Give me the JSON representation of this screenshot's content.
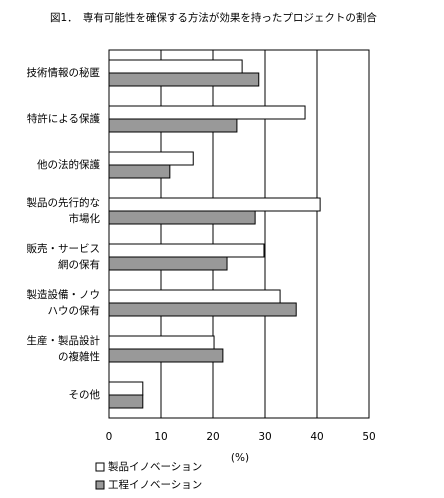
{
  "chart_data": {
    "type": "hbar",
    "title": "図1．　専有可能性を確保する方法が効果を持ったプロジェクトの割合",
    "categories": [
      [
        "技術情報の秘匿"
      ],
      [
        "特許による保護"
      ],
      [
        "他の法的保護"
      ],
      [
        "製品の先行的な",
        "市場化"
      ],
      [
        "販売・サービス",
        "網の保有"
      ],
      [
        "製造設備・ノウ",
        "ハウの保有"
      ],
      [
        "生産・製品設計",
        "の複雑性"
      ],
      [
        "その他"
      ]
    ],
    "series": [
      {
        "name": "製品イノベーション",
        "color": "#ffffff",
        "values": [
          25.6,
          37.7,
          16.2,
          40.6,
          29.8,
          32.9,
          20.2,
          6.5
        ]
      },
      {
        "name": "工程イノベーション",
        "color": "#999999",
        "values": [
          28.8,
          24.6,
          11.7,
          28.1,
          22.7,
          36.0,
          21.9,
          6.5
        ]
      }
    ],
    "x_label": "(%)",
    "xlim": [
      0,
      50
    ],
    "xticks": [
      0,
      10,
      20,
      30,
      40,
      50
    ],
    "grid": true
  }
}
